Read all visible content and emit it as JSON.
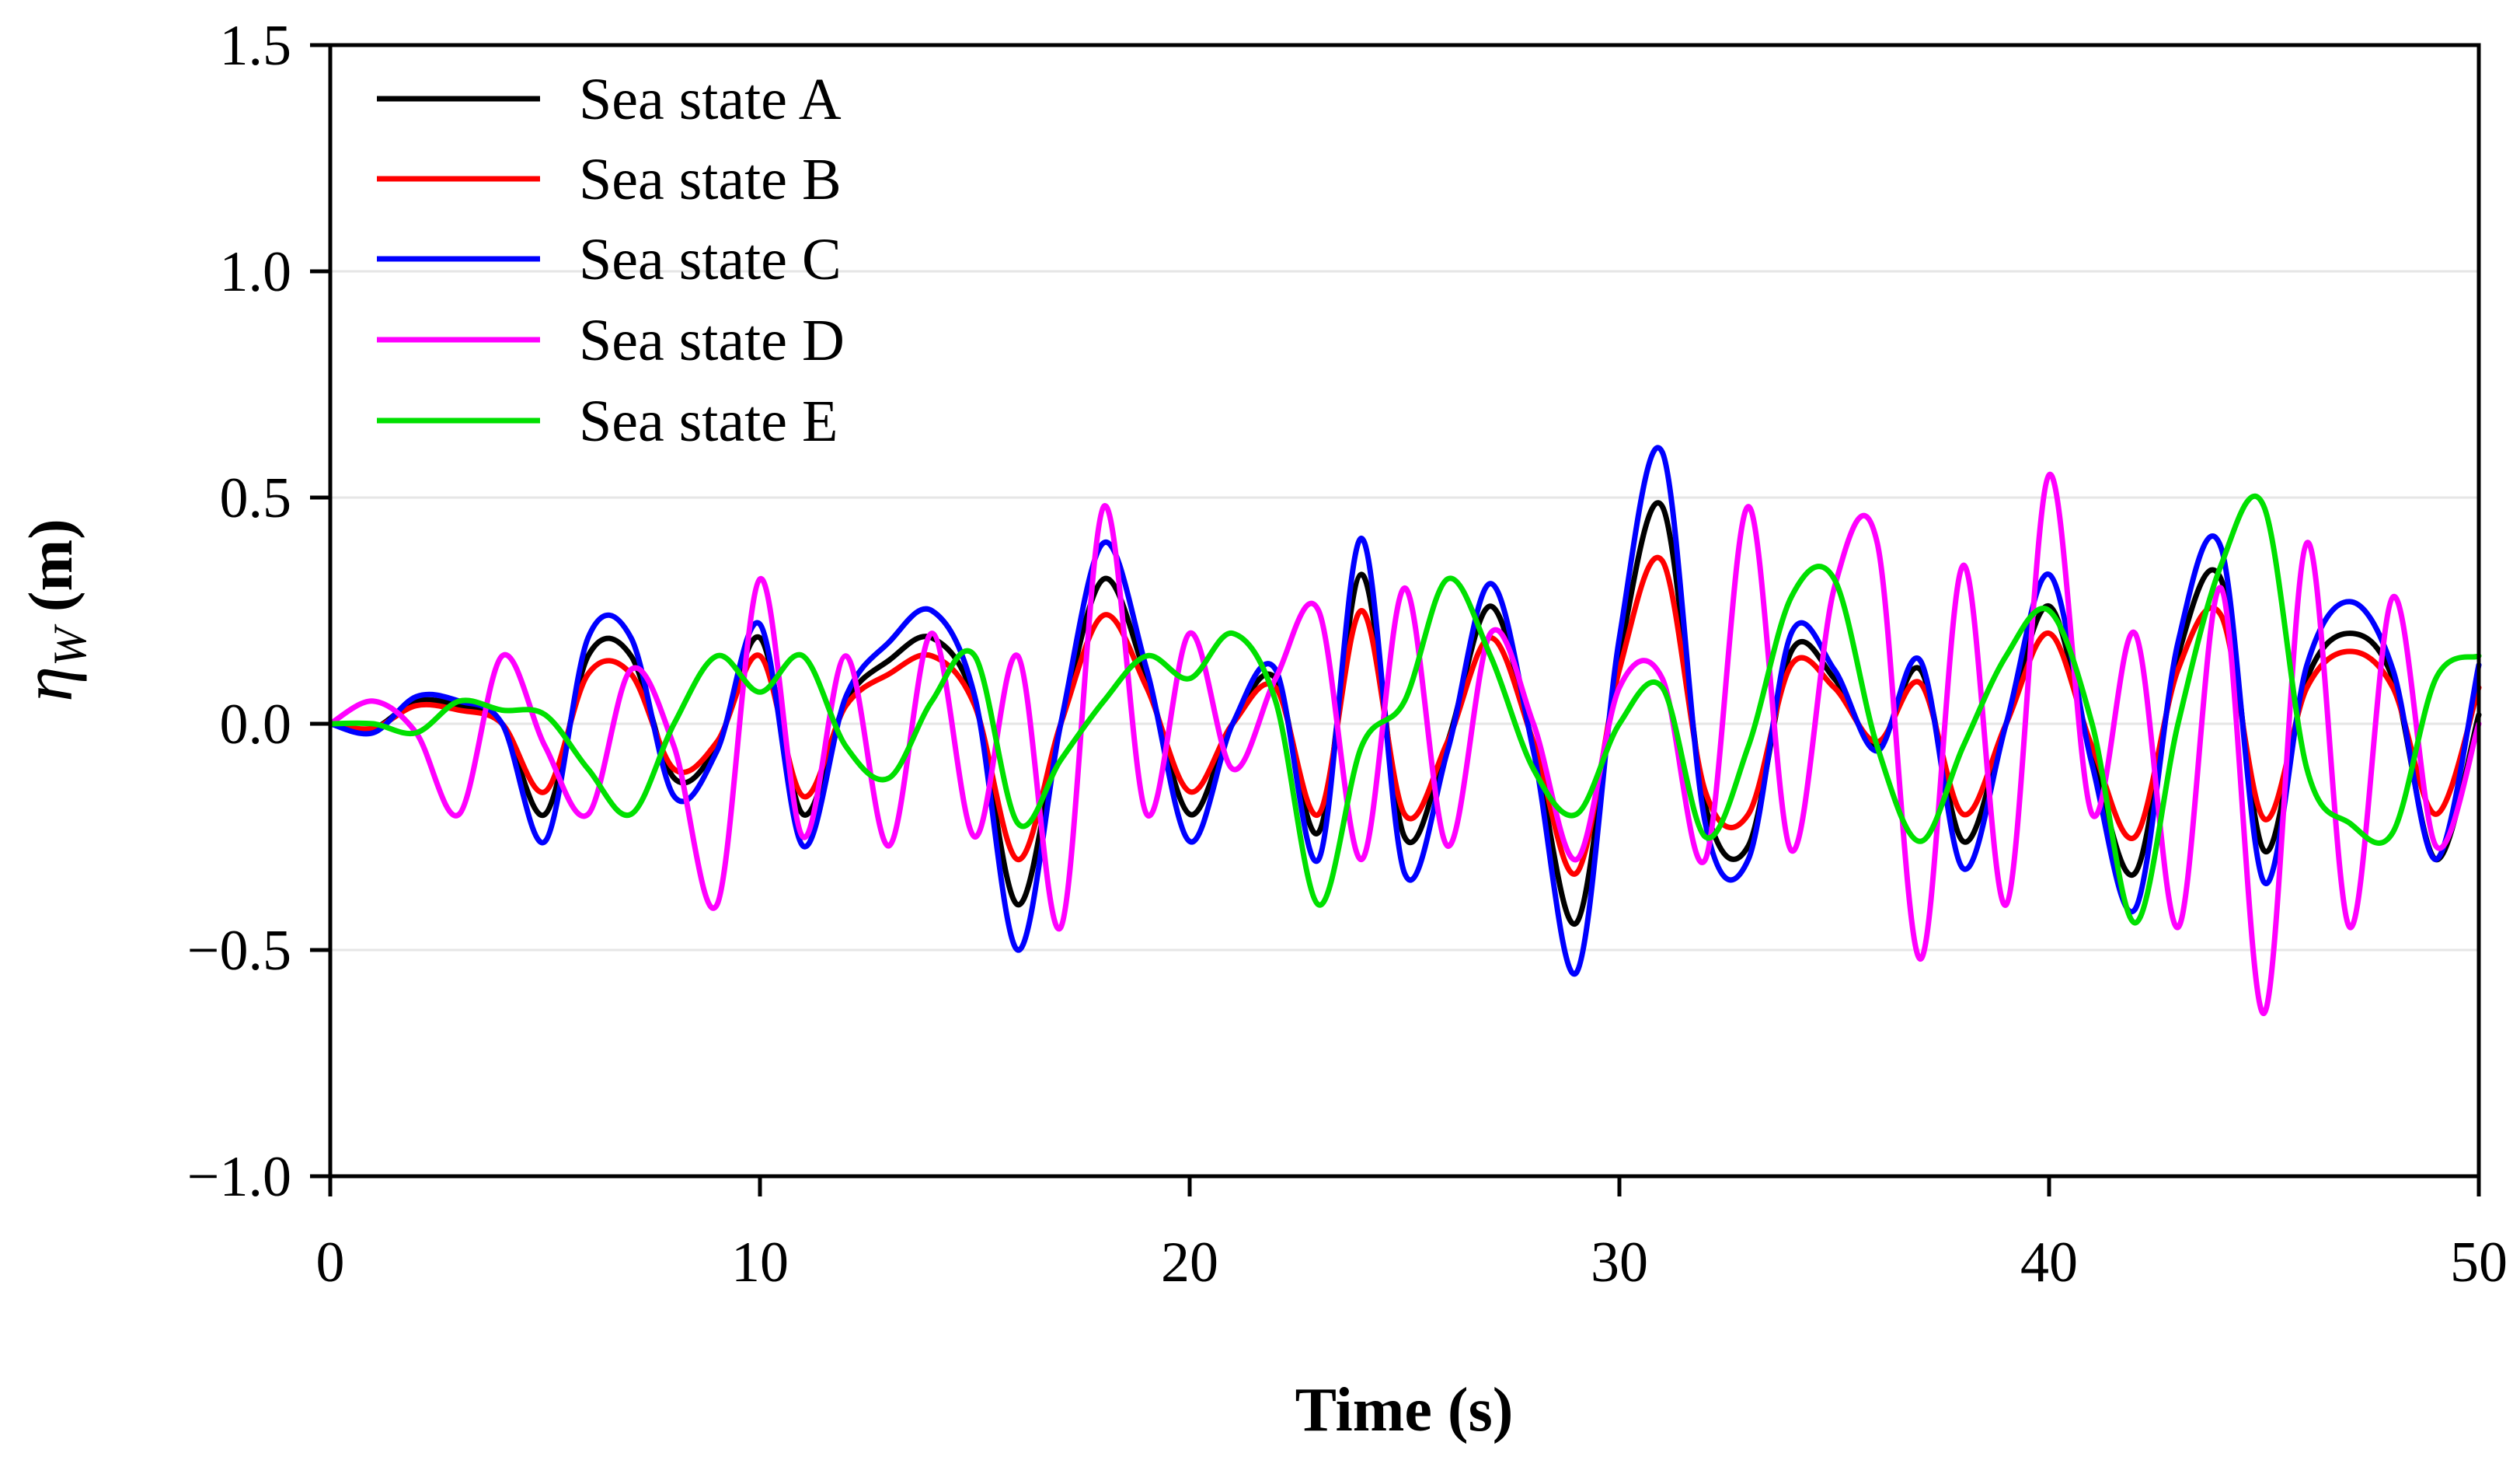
{
  "chart_data": {
    "type": "line",
    "title": "",
    "xlabel": "Time (s)",
    "ylabel_symbol": "η",
    "ylabel_subscript": "W",
    "ylabel_unit": " (m)",
    "xlim": [
      0,
      50
    ],
    "ylim": [
      -1.0,
      1.5
    ],
    "xticks": [
      0,
      10,
      20,
      30,
      40,
      50
    ],
    "xtick_labels": [
      "0",
      "10",
      "20",
      "30",
      "40",
      "50"
    ],
    "yticks": [
      -1.0,
      -0.5,
      0.0,
      0.5,
      1.0,
      1.5
    ],
    "ytick_labels": [
      "−1.0",
      "−0.5",
      "0.0",
      "0.5",
      "1.0",
      "1.5"
    ],
    "grid": "horizontal",
    "legend_position": "top-left",
    "x": [
      0,
      1,
      2,
      3,
      4,
      5,
      6,
      7,
      8,
      9,
      10,
      11,
      12,
      13,
      14,
      15,
      16,
      17,
      18,
      19,
      20,
      21,
      22,
      23,
      24,
      25,
      26,
      27,
      28,
      29,
      30,
      31,
      32,
      33,
      34,
      35,
      36,
      37,
      38,
      39,
      40,
      41,
      42,
      43,
      44,
      45,
      46,
      47,
      48,
      49,
      50
    ],
    "series": [
      {
        "name": "Sea state A",
        "color": "#000000",
        "values": [
          0,
          -0.01,
          0.05,
          0.04,
          0.0,
          -0.2,
          0.15,
          0.15,
          -0.12,
          -0.05,
          0.19,
          -0.2,
          0.05,
          0.14,
          0.19,
          0.05,
          -0.4,
          0.0,
          0.32,
          0.1,
          -0.2,
          0.0,
          0.1,
          -0.24,
          0.33,
          -0.25,
          -0.04,
          0.26,
          -0.05,
          -0.44,
          0.15,
          0.48,
          -0.18,
          -0.27,
          0.16,
          0.1,
          -0.05,
          0.12,
          -0.26,
          0.0,
          0.26,
          -0.07,
          -0.33,
          0.15,
          0.32,
          -0.28,
          0.1,
          0.2,
          0.1,
          -0.3,
          0.02
        ]
      },
      {
        "name": "Sea state B",
        "color": "#ff0000",
        "values": [
          0,
          -0.01,
          0.04,
          0.03,
          0.0,
          -0.15,
          0.11,
          0.11,
          -0.1,
          -0.04,
          0.15,
          -0.16,
          0.04,
          0.11,
          0.15,
          0.04,
          -0.3,
          0.0,
          0.24,
          0.08,
          -0.15,
          0.0,
          0.08,
          -0.2,
          0.25,
          -0.2,
          -0.04,
          0.19,
          -0.04,
          -0.33,
          0.12,
          0.36,
          -0.15,
          -0.2,
          0.13,
          0.08,
          -0.04,
          0.09,
          -0.2,
          0.0,
          0.2,
          -0.05,
          -0.25,
          0.12,
          0.24,
          -0.21,
          0.08,
          0.16,
          0.08,
          -0.2,
          0.08
        ]
      },
      {
        "name": "Sea state C",
        "color": "#0000ff",
        "values": [
          0,
          -0.02,
          0.06,
          0.05,
          0.0,
          -0.26,
          0.19,
          0.19,
          -0.16,
          -0.06,
          0.22,
          -0.27,
          0.06,
          0.18,
          0.25,
          0.06,
          -0.5,
          0.0,
          0.4,
          0.12,
          -0.26,
          0.0,
          0.12,
          -0.3,
          0.41,
          -0.33,
          -0.06,
          0.31,
          -0.06,
          -0.55,
          0.19,
          0.6,
          -0.22,
          -0.3,
          0.2,
          0.12,
          -0.06,
          0.14,
          -0.32,
          0.0,
          0.33,
          -0.09,
          -0.41,
          0.18,
          0.39,
          -0.35,
          0.13,
          0.27,
          0.12,
          -0.3,
          0.13
        ]
      },
      {
        "name": "Sea state D",
        "color": "#ff00ff",
        "values": [
          0,
          0.05,
          -0.02,
          -0.2,
          0.15,
          -0.05,
          -0.2,
          0.12,
          -0.05,
          -0.4,
          0.32,
          -0.25,
          0.15,
          -0.27,
          0.2,
          -0.25,
          0.15,
          -0.45,
          0.48,
          -0.2,
          0.2,
          -0.1,
          0.1,
          0.25,
          -0.3,
          0.3,
          -0.27,
          0.2,
          0.0,
          -0.3,
          0.08,
          0.1,
          -0.3,
          0.48,
          -0.28,
          0.3,
          0.4,
          -0.52,
          0.35,
          -0.4,
          0.55,
          -0.2,
          0.2,
          -0.45,
          0.3,
          -0.64,
          0.4,
          -0.45,
          0.28,
          -0.27,
          0.0
        ]
      },
      {
        "name": "Sea state E",
        "color": "#00e000",
        "values": [
          0,
          0.0,
          -0.02,
          0.05,
          0.03,
          0.02,
          -0.1,
          -0.2,
          0.0,
          0.15,
          0.07,
          0.15,
          -0.05,
          -0.12,
          0.05,
          0.15,
          -0.22,
          -0.08,
          0.05,
          0.15,
          0.1,
          0.2,
          0.05,
          -0.4,
          -0.05,
          0.05,
          0.32,
          0.15,
          -0.1,
          -0.2,
          0.0,
          0.08,
          -0.25,
          -0.05,
          0.28,
          0.32,
          -0.05,
          -0.26,
          -0.05,
          0.15,
          0.25,
          0.0,
          -0.44,
          0.0,
          0.35,
          0.48,
          -0.1,
          -0.22,
          -0.24,
          0.1,
          0.15
        ]
      }
    ]
  }
}
